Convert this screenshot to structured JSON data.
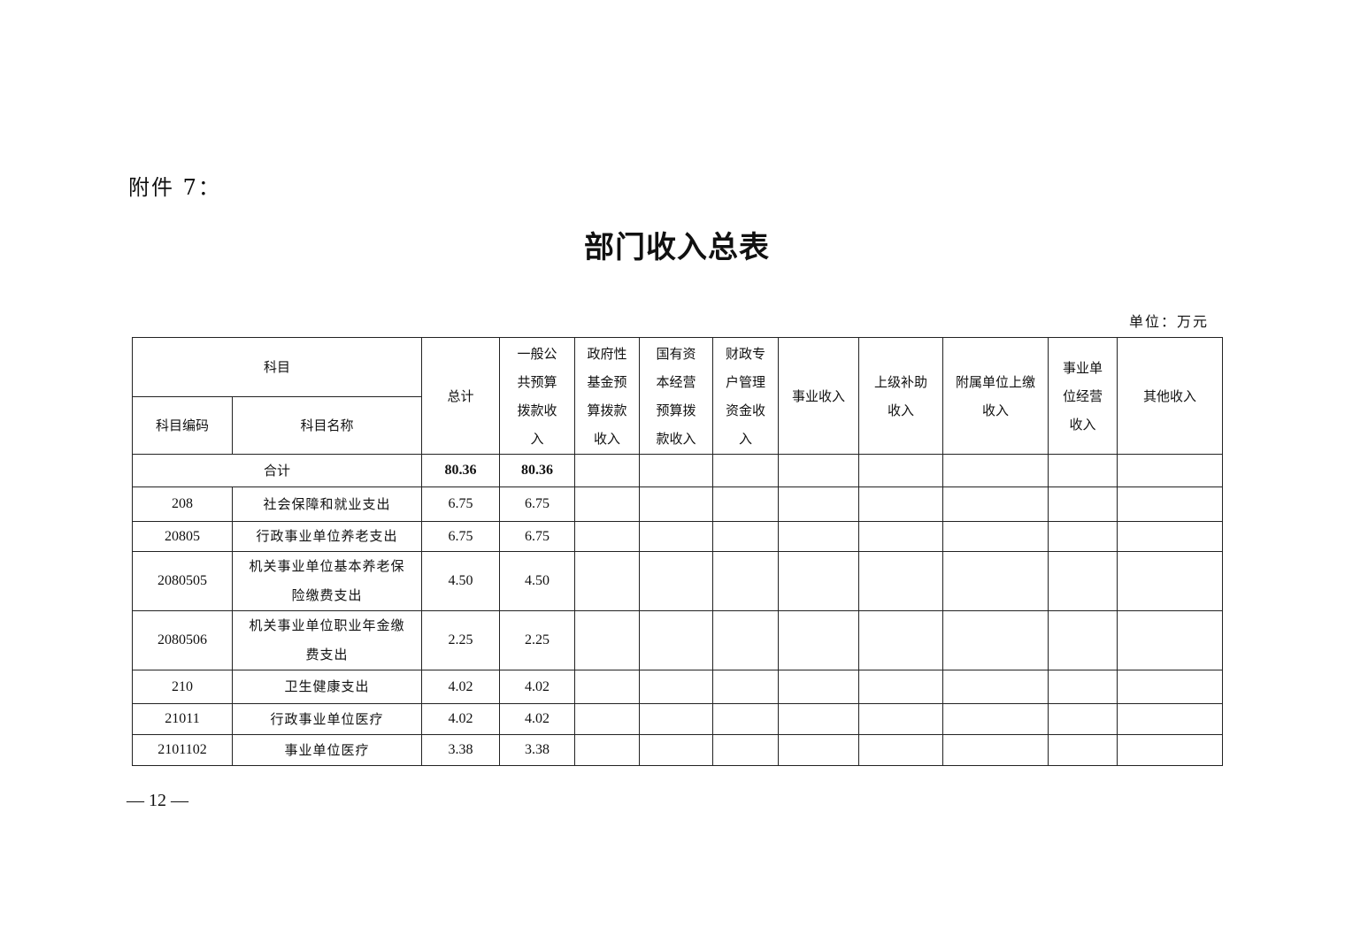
{
  "attachment_label": "附件 7：",
  "title": "部门收入总表",
  "unit": "单位：万元",
  "table": {
    "header": {
      "subject": "科目",
      "code": "科目编码",
      "name": "科目名称",
      "columns": [
        "总计",
        "一般公共预算拨款收入",
        "政府性基金预算拨款收入",
        "国有资本经营预算拨款收入",
        "财政专户管理资金收入",
        "事业收入",
        "上级补助收入",
        "附属单位上缴收入",
        "事业单位经营收入",
        "其他收入"
      ]
    },
    "total": {
      "label": "合计",
      "total": "80.36",
      "general_budget": "80.36"
    },
    "rows": [
      {
        "code": "208",
        "name": "社会保障和就业支出",
        "total": "6.75",
        "general_budget": "6.75"
      },
      {
        "code": "20805",
        "name": "行政事业单位养老支出",
        "total": "6.75",
        "general_budget": "6.75"
      },
      {
        "code": "2080505",
        "name": "机关事业单位基本养老保险缴费支出",
        "total": "4.50",
        "general_budget": "4.50"
      },
      {
        "code": "2080506",
        "name": "机关事业单位职业年金缴费支出",
        "total": "2.25",
        "general_budget": "2.25"
      },
      {
        "code": "210",
        "name": "卫生健康支出",
        "total": "4.02",
        "general_budget": "4.02"
      },
      {
        "code": "21011",
        "name": "行政事业单位医疗",
        "total": "4.02",
        "general_budget": "4.02"
      },
      {
        "code": "2101102",
        "name": "事业单位医疗",
        "total": "3.38",
        "general_budget": "3.38"
      }
    ]
  },
  "page_number": "— 12 —"
}
